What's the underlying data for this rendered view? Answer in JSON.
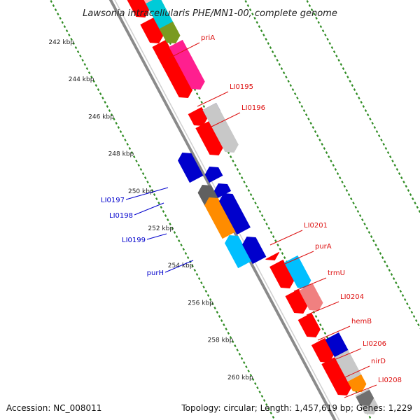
{
  "title": "Lawsonia intracellularis PHE/MN1-00, complete genome",
  "footer": {
    "accession": "Accession: NC_008011",
    "topology": "Topology: circular; Length: 1,457,619 bp; Genes: 1,229"
  },
  "axis": {
    "ticks": [
      {
        "value": 242,
        "label": "242 kbp"
      },
      {
        "value": 244,
        "label": "244 kbp"
      },
      {
        "value": 246,
        "label": "246 kbp"
      },
      {
        "value": 248,
        "label": "248 kbp"
      },
      {
        "value": 250,
        "label": "250 kbp"
      },
      {
        "value": 252,
        "label": "252 kbp"
      },
      {
        "value": 254,
        "label": "254 kbp"
      },
      {
        "value": 256,
        "label": "256 kbp"
      },
      {
        "value": 258,
        "label": "258 kbp"
      },
      {
        "value": 260,
        "label": "260 kbp"
      }
    ]
  },
  "colors": {
    "backbone": "#8a8a8a",
    "guide_dots": "#2e8b22",
    "forward_label": "#dd1111",
    "reverse_label": "#0000cc"
  },
  "genes": {
    "forward_labeled": [
      {
        "label": "priA",
        "color": "#ff1f8f"
      },
      {
        "label": "LI0195",
        "color": "#000080"
      },
      {
        "label": "LI0196",
        "color": "#c8c8c8"
      },
      {
        "label": "LI0201",
        "color": "#ff0000"
      },
      {
        "label": "purA",
        "color": "#ff0000"
      },
      {
        "label": "trmU",
        "color": "#f08080"
      },
      {
        "label": "LI0204",
        "color": "#ff0000"
      },
      {
        "label": "hemB",
        "color": "#ff0000"
      },
      {
        "label": "LI0206",
        "color": "#0000cc"
      },
      {
        "label": "nirD",
        "color": "#c8c8c8"
      },
      {
        "label": "LI0208",
        "color": "#ff8c00"
      }
    ],
    "reverse_labeled": [
      {
        "label": "LI0197",
        "color": "#606060"
      },
      {
        "label": "LI0198",
        "color": "#ff8c00"
      },
      {
        "label": "LI0199",
        "color": "#0000dd"
      },
      {
        "label": "purH",
        "color": "#00bfff"
      }
    ]
  }
}
